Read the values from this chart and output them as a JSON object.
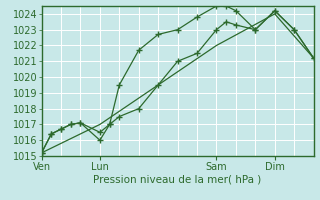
{
  "bg_color": "#c8e8e8",
  "grid_color": "#ffffff",
  "line_color": "#2d6a2d",
  "marker_color": "#2d6a2d",
  "axis_label_color": "#2d6a2d",
  "tick_label_color": "#2d6a2d",
  "xlabel": "Pression niveau de la mer( hPa )",
  "ylim": [
    1015,
    1024.5
  ],
  "yticks": [
    1015,
    1016,
    1017,
    1018,
    1019,
    1020,
    1021,
    1022,
    1023,
    1024
  ],
  "day_labels": [
    "Ven",
    "Lun",
    "Sam",
    "Dim"
  ],
  "day_positions": [
    0,
    30,
    90,
    120
  ],
  "xmax": 140,
  "series1_x": [
    0,
    5,
    10,
    15,
    20,
    30,
    35,
    40,
    50,
    60,
    70,
    80,
    90,
    95,
    100,
    110,
    120,
    130,
    140
  ],
  "series1_y": [
    1015.2,
    1016.4,
    1016.7,
    1017.0,
    1017.1,
    1016.0,
    1017.0,
    1017.5,
    1018.0,
    1019.5,
    1021.0,
    1021.5,
    1023.0,
    1023.5,
    1023.3,
    1023.0,
    1024.2,
    1023.0,
    1021.2
  ],
  "series2_x": [
    0,
    5,
    10,
    15,
    20,
    30,
    35,
    40,
    50,
    60,
    70,
    80,
    90,
    95,
    100,
    110,
    120,
    130,
    140
  ],
  "series2_y": [
    1015.2,
    1016.4,
    1016.7,
    1017.0,
    1017.1,
    1016.5,
    1017.0,
    1019.5,
    1021.7,
    1022.7,
    1023.0,
    1023.8,
    1024.5,
    1024.5,
    1024.2,
    1023.0,
    1024.2,
    1023.0,
    1021.2
  ],
  "series3_x": [
    0,
    30,
    60,
    90,
    120,
    140
  ],
  "series3_y": [
    1015.2,
    1017.0,
    1019.5,
    1022.0,
    1024.0,
    1021.2
  ]
}
